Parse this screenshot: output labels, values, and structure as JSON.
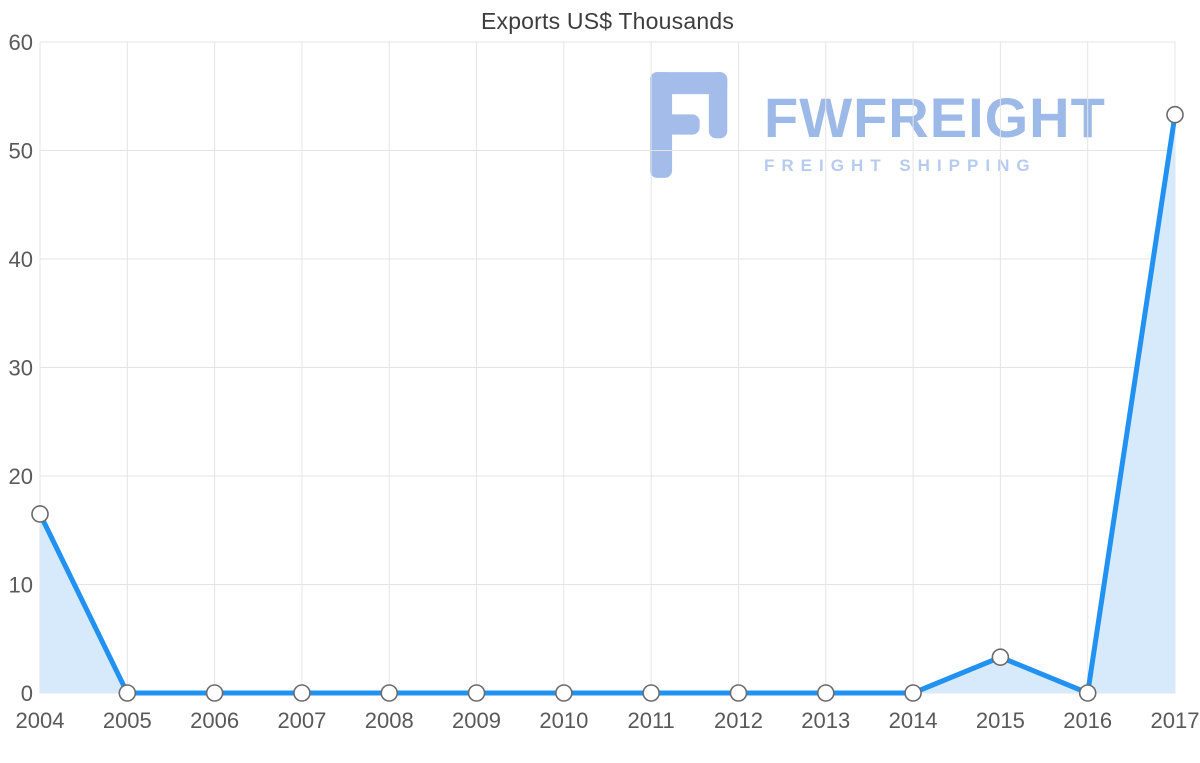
{
  "chart_data": {
    "type": "area",
    "title": "Exports US$ Thousands",
    "x": [
      "2004",
      "2005",
      "2006",
      "2007",
      "2008",
      "2009",
      "2010",
      "2011",
      "2012",
      "2013",
      "2014",
      "2015",
      "2016",
      "2017"
    ],
    "values": [
      16.5,
      0,
      0,
      0,
      0,
      0,
      0,
      0,
      0,
      0,
      0,
      3.3,
      0,
      53.3
    ],
    "xlabel": "",
    "ylabel": "",
    "ylim": [
      0,
      60
    ],
    "yticks": [
      0,
      10,
      20,
      30,
      40,
      50,
      60
    ],
    "grid": true,
    "legend": "none",
    "line_color": "#2191f2",
    "fill_color": "#d7eafc",
    "grid_color": "#e4e4e4",
    "marker_fill": "#ffffff",
    "marker_stroke": "#6b6b6b",
    "tick_color": "#595959"
  },
  "watermark": {
    "brand": "FWFREIGHT",
    "tagline": "FREIGHT SHIPPING",
    "logo_icon": "fwfreight-f-logo",
    "color": "#9db9e8"
  }
}
